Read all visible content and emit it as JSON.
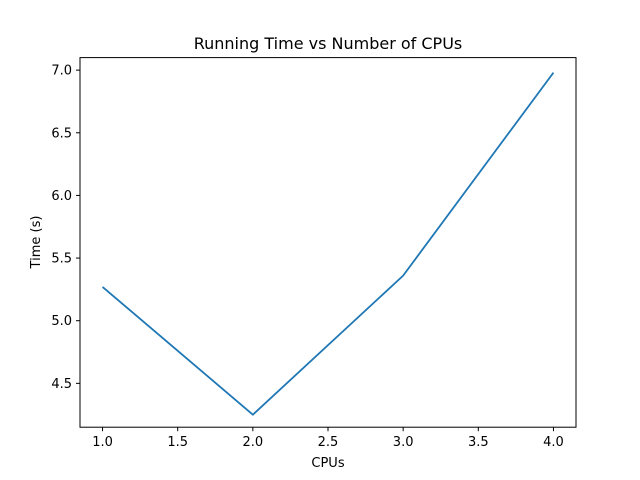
{
  "chart_data": {
    "type": "line",
    "title": "Running Time vs Number of CPUs",
    "xlabel": "CPUs",
    "ylabel": "Time (s)",
    "xlim": [
      0.85,
      4.15
    ],
    "ylim": [
      4.15,
      7.1
    ],
    "x_ticks": [
      1.0,
      1.5,
      2.0,
      2.5,
      3.0,
      3.5,
      4.0
    ],
    "x_tick_labels": [
      "1.0",
      "1.5",
      "2.0",
      "2.5",
      "3.0",
      "3.5",
      "4.0"
    ],
    "y_ticks": [
      4.5,
      5.0,
      5.5,
      6.0,
      6.5,
      7.0
    ],
    "y_tick_labels": [
      "4.5",
      "5.0",
      "5.5",
      "6.0",
      "6.5",
      "7.0"
    ],
    "grid": false,
    "series": [
      {
        "color": "#1f77b4",
        "x": [
          1,
          2,
          3,
          4
        ],
        "y": [
          5.27,
          4.25,
          5.36,
          6.98
        ]
      }
    ]
  }
}
